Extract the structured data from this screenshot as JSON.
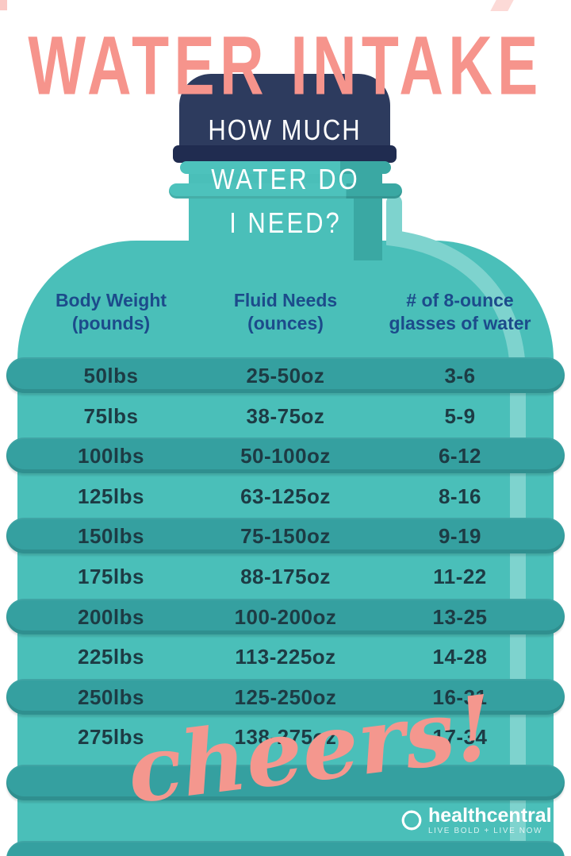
{
  "title": "WATER INTAKE",
  "bottle": {
    "cap_text": "HOW MUCH",
    "neck_line1": "WATER DO",
    "neck_line2": "I NEED?"
  },
  "table": {
    "headers": [
      {
        "line1": "Body Weight",
        "line2": "(pounds)"
      },
      {
        "line1": "Fluid Needs",
        "line2": "(ounces)"
      },
      {
        "line1": "# of 8-ounce",
        "line2": "glasses of water"
      }
    ],
    "rows": [
      {
        "weight": "50lbs",
        "fluid": "25-50oz",
        "glasses": "3-6"
      },
      {
        "weight": "75lbs",
        "fluid": "38-75oz",
        "glasses": "5-9"
      },
      {
        "weight": "100lbs",
        "fluid": "50-100oz",
        "glasses": "6-12"
      },
      {
        "weight": "125lbs",
        "fluid": "63-125oz",
        "glasses": "8-16"
      },
      {
        "weight": "150lbs",
        "fluid": "75-150oz",
        "glasses": "9-19"
      },
      {
        "weight": "175lbs",
        "fluid": "88-175oz",
        "glasses": "11-22"
      },
      {
        "weight": "200lbs",
        "fluid": "100-200oz",
        "glasses": "13-25"
      },
      {
        "weight": "225lbs",
        "fluid": "113-225oz",
        "glasses": "14-28"
      },
      {
        "weight": "250lbs",
        "fluid": "125-250oz",
        "glasses": "16-31"
      },
      {
        "weight": "275lbs",
        "fluid": "138-275oz",
        "glasses": "17-34"
      }
    ]
  },
  "footer": {
    "cheers": "cheers!",
    "brand": "healthcentral",
    "tagline": "LIVE BOLD + LIVE NOW"
  },
  "colors": {
    "background": "#ffffff",
    "title_pink": "#f6948c",
    "bottle_body_teal": "#4abfb9",
    "ridge_teal": "#35a0a0",
    "highlight_teal": "#7ed3ce",
    "cap_navy": "#2d3b5e",
    "cap_base_navy": "#202c50",
    "header_blue": "#1c4b8b",
    "row_text": "#1d3b44",
    "white": "#ffffff"
  },
  "chart_data": {
    "type": "table",
    "title": "WATER INTAKE — HOW MUCH WATER DO I NEED?",
    "columns": [
      "Body Weight (pounds)",
      "Fluid Needs (ounces)",
      "# of 8-ounce glasses of water"
    ],
    "rows": [
      [
        "50lbs",
        "25-50oz",
        "3-6"
      ],
      [
        "75lbs",
        "38-75oz",
        "5-9"
      ],
      [
        "100lbs",
        "50-100oz",
        "6-12"
      ],
      [
        "125lbs",
        "63-125oz",
        "8-16"
      ],
      [
        "150lbs",
        "75-150oz",
        "9-19"
      ],
      [
        "175lbs",
        "88-175oz",
        "11-22"
      ],
      [
        "200lbs",
        "100-200oz",
        "13-25"
      ],
      [
        "225lbs",
        "113-225oz",
        "14-28"
      ],
      [
        "250lbs",
        "125-250oz",
        "16-31"
      ],
      [
        "275lbs",
        "138-275oz",
        "17-34"
      ]
    ]
  }
}
